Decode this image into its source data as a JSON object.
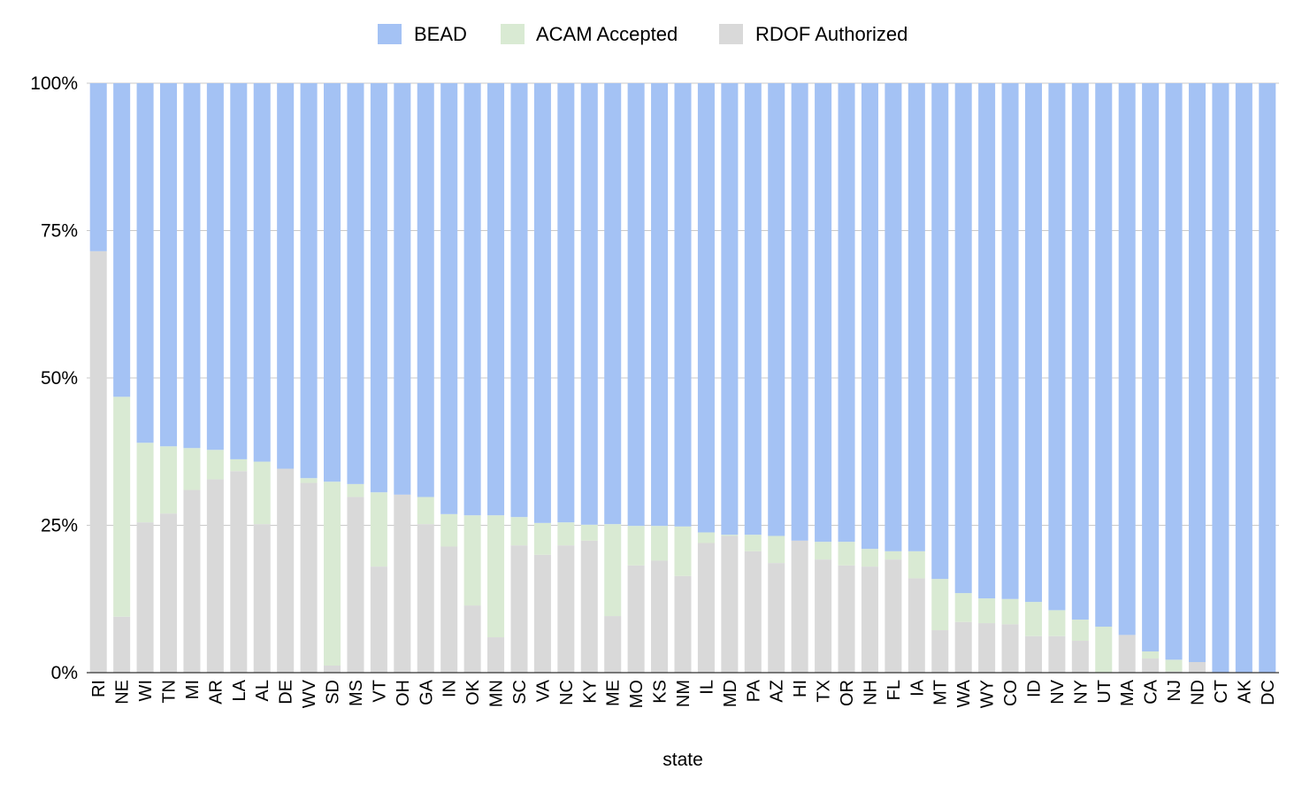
{
  "chart_data": {
    "type": "bar",
    "stacked": "percent",
    "xlabel": "state",
    "ylabel": "",
    "ylim": [
      0,
      100
    ],
    "y_tick_labels": [
      "0%",
      "25%",
      "50%",
      "75%",
      "100%"
    ],
    "y_tick_values": [
      0,
      25,
      50,
      75,
      100
    ],
    "grid": true,
    "legend_position": "top",
    "categories": [
      "RI",
      "NE",
      "WI",
      "TN",
      "MI",
      "AR",
      "LA",
      "AL",
      "DE",
      "WV",
      "SD",
      "MS",
      "VT",
      "OH",
      "GA",
      "IN",
      "OK",
      "MN",
      "SC",
      "VA",
      "NC",
      "KY",
      "ME",
      "MO",
      "KS",
      "NM",
      "IL",
      "MD",
      "PA",
      "AZ",
      "HI",
      "TX",
      "OR",
      "NH",
      "FL",
      "IA",
      "MT",
      "WA",
      "WY",
      "CO",
      "ID",
      "NV",
      "NY",
      "UT",
      "MA",
      "CA",
      "NJ",
      "ND",
      "CT",
      "AK",
      "DC"
    ],
    "series": [
      {
        "name": "RDOF Authorized",
        "color": "#d9d9d9",
        "values": [
          71.5,
          9.5,
          25.5,
          27.0,
          31.0,
          32.8,
          34.2,
          25.2,
          34.6,
          32.2,
          1.2,
          29.8,
          18.0,
          30.2,
          25.2,
          21.4,
          11.4,
          6.0,
          21.6,
          20.0,
          21.6,
          22.4,
          9.6,
          18.2,
          19.0,
          16.4,
          22.0,
          23.2,
          20.6,
          18.6,
          22.4,
          19.2,
          18.2,
          18.0,
          19.2,
          16.0,
          7.2,
          8.6,
          8.4,
          8.2,
          6.2,
          6.2,
          5.4,
          0.0,
          6.4,
          2.4,
          0.2,
          1.8,
          0.0,
          0.0,
          0.0
        ]
      },
      {
        "name": "ACAM Accepted",
        "color": "#d9ead3",
        "values": [
          0.0,
          37.3,
          13.5,
          11.4,
          7.1,
          5.0,
          2.0,
          10.6,
          0.0,
          0.8,
          31.2,
          2.2,
          12.6,
          0.0,
          4.6,
          5.5,
          15.3,
          20.7,
          4.8,
          5.4,
          3.9,
          2.7,
          15.6,
          6.7,
          5.9,
          8.4,
          1.8,
          0.2,
          2.8,
          4.6,
          0.0,
          3.0,
          4.0,
          3.0,
          1.4,
          4.6,
          8.7,
          4.9,
          4.2,
          4.3,
          5.8,
          4.4,
          3.6,
          7.8,
          0.0,
          1.2,
          2.0,
          0.0,
          0.0,
          0.0,
          0.0
        ]
      },
      {
        "name": "BEAD",
        "color": "#a4c2f4",
        "values": [
          28.5,
          53.2,
          61.0,
          61.6,
          61.9,
          62.2,
          63.8,
          64.2,
          65.4,
          67.0,
          67.6,
          68.0,
          69.4,
          69.8,
          70.2,
          73.1,
          73.3,
          73.3,
          73.6,
          74.6,
          74.5,
          74.9,
          74.8,
          75.1,
          75.1,
          75.2,
          76.2,
          76.6,
          76.6,
          76.8,
          77.6,
          77.8,
          77.8,
          79.0,
          79.4,
          79.4,
          84.1,
          86.5,
          87.4,
          87.5,
          88.0,
          89.4,
          91.0,
          92.2,
          93.6,
          96.4,
          97.8,
          98.2,
          100.0,
          100.0,
          100.0
        ]
      }
    ]
  },
  "legend": {
    "items": [
      {
        "label": "BEAD",
        "color": "#a4c2f4"
      },
      {
        "label": "ACAM Accepted",
        "color": "#d9ead3"
      },
      {
        "label": "RDOF Authorized",
        "color": "#d9d9d9"
      }
    ]
  },
  "style": {
    "gridline_color": "#c9c9c9",
    "baseline_color": "#333333"
  }
}
